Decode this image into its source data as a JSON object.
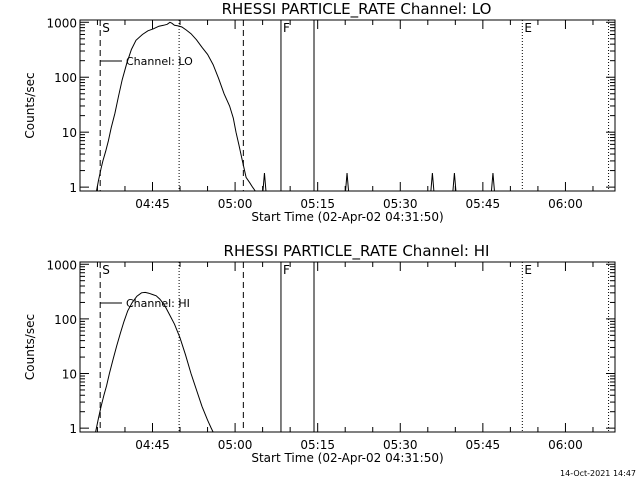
{
  "colors": {
    "background": "#ffffff",
    "foreground": "#000000"
  },
  "footer": {
    "timestamp": "14-Oct-2021 14:47"
  },
  "chart_data": [
    {
      "type": "line",
      "title": "RHESSI PARTICLE_RATE Channel: LO",
      "xlabel": "Start Time (02-Apr-02 04:31:50)",
      "ylabel": "Counts/sec",
      "yscale": "log",
      "xlim": [
        "04:31:50",
        "06:09:00"
      ],
      "ylim": [
        0.85,
        1100
      ],
      "x_ticks": [
        "04:45",
        "05:00",
        "05:15",
        "05:30",
        "05:45",
        "06:00"
      ],
      "y_ticks": [
        "1",
        "10",
        "100",
        "1000"
      ],
      "legend": {
        "label": "Channel: LO",
        "placement": "top-left"
      },
      "series": [
        {
          "name": "Channel: LO",
          "points": [
            [
              "04:34:50",
              0.85
            ],
            [
              "04:35:10",
              1.3
            ],
            [
              "04:35:40",
              2.2
            ],
            [
              "04:36:00",
              3.0
            ],
            [
              "04:36:30",
              4.5
            ],
            [
              "04:37:00",
              7
            ],
            [
              "04:37:30",
              12
            ],
            [
              "04:38:10",
              22
            ],
            [
              "04:38:50",
              45
            ],
            [
              "04:39:30",
              90
            ],
            [
              "04:40:20",
              180
            ],
            [
              "04:41:10",
              320
            ],
            [
              "04:42:00",
              470
            ],
            [
              "04:43:10",
              600
            ],
            [
              "04:44:10",
              700
            ],
            [
              "04:45:10",
              760
            ],
            [
              "04:46:10",
              850
            ],
            [
              "04:47:00",
              880
            ],
            [
              "04:47:40",
              920
            ],
            [
              "04:48:10",
              1000
            ],
            [
              "04:48:30",
              960
            ],
            [
              "04:49:00",
              880
            ],
            [
              "04:49:40",
              860
            ],
            [
              "04:50:20",
              820
            ],
            [
              "04:51:10",
              720
            ],
            [
              "04:52:00",
              620
            ],
            [
              "04:53:00",
              480
            ],
            [
              "04:54:00",
              350
            ],
            [
              "04:55:00",
              260
            ],
            [
              "04:56:00",
              170
            ],
            [
              "04:57:00",
              95
            ],
            [
              "04:58:00",
              50
            ],
            [
              "04:59:00",
              30
            ],
            [
              "04:59:40",
              18
            ],
            [
              "05:00:10",
              10
            ],
            [
              "05:00:40",
              6
            ],
            [
              "05:01:20",
              3
            ],
            [
              "05:02:00",
              1.5
            ],
            [
              "05:02:40",
              1.2
            ],
            [
              "05:03:10",
              1.0
            ],
            [
              "05:03:40",
              0.85
            ]
          ],
          "spikes": [
            {
              "time": "05:05:20",
              "peak": 1.8
            },
            {
              "time": "05:20:20",
              "peak": 1.8
            },
            {
              "time": "05:35:50",
              "peak": 1.8
            },
            {
              "time": "05:39:50",
              "peak": 1.8
            },
            {
              "time": "05:46:50",
              "peak": 1.8
            }
          ]
        }
      ],
      "markers": [
        {
          "kind": "dashed",
          "time": "04:35:30",
          "label": "S"
        },
        {
          "kind": "dotted",
          "time": "04:49:50",
          "label": ""
        },
        {
          "kind": "dashed",
          "time": "05:01:30",
          "label": ""
        },
        {
          "kind": "solid",
          "time": "05:08:20",
          "label": "F"
        },
        {
          "kind": "solid",
          "time": "05:14:20",
          "label": ""
        },
        {
          "kind": "dotted",
          "time": "05:52:10",
          "label": "E"
        },
        {
          "kind": "dotted",
          "time": "06:07:50",
          "label": ""
        }
      ]
    },
    {
      "type": "line",
      "title": "RHESSI PARTICLE_RATE Channel: HI",
      "xlabel": "Start Time (02-Apr-02 04:31:50)",
      "ylabel": "Counts/sec",
      "yscale": "log",
      "xlim": [
        "04:31:50",
        "06:09:00"
      ],
      "ylim": [
        0.85,
        1100
      ],
      "x_ticks": [
        "04:45",
        "05:00",
        "05:15",
        "05:30",
        "05:45",
        "06:00"
      ],
      "y_ticks": [
        "1",
        "10",
        "100",
        "1000"
      ],
      "legend": {
        "label": "Channel: HI",
        "placement": "top-left"
      },
      "series": [
        {
          "name": "Channel: HI",
          "points": [
            [
              "04:34:40",
              0.85
            ],
            [
              "04:35:10",
              1.5
            ],
            [
              "04:35:40",
              2.5
            ],
            [
              "04:36:10",
              4
            ],
            [
              "04:36:40",
              6
            ],
            [
              "04:37:10",
              10
            ],
            [
              "04:37:50",
              18
            ],
            [
              "04:38:30",
              32
            ],
            [
              "04:39:10",
              55
            ],
            [
              "04:39:50",
              90
            ],
            [
              "04:40:30",
              140
            ],
            [
              "04:41:20",
              200
            ],
            [
              "04:42:10",
              260
            ],
            [
              "04:43:00",
              300
            ],
            [
              "04:43:40",
              305
            ],
            [
              "04:44:20",
              295
            ],
            [
              "04:45:00",
              280
            ],
            [
              "04:45:40",
              265
            ],
            [
              "04:46:20",
              230
            ],
            [
              "04:47:10",
              180
            ],
            [
              "04:48:00",
              125
            ],
            [
              "04:49:00",
              80
            ],
            [
              "04:50:00",
              45
            ],
            [
              "04:51:00",
              22
            ],
            [
              "04:52:00",
              10
            ],
            [
              "04:53:00",
              5
            ],
            [
              "04:54:00",
              2.5
            ],
            [
              "04:55:00",
              1.4
            ],
            [
              "04:55:40",
              1.0
            ],
            [
              "04:56:00",
              0.85
            ]
          ],
          "spikes": []
        }
      ],
      "markers": [
        {
          "kind": "dashed",
          "time": "04:35:30",
          "label": "S"
        },
        {
          "kind": "dotted",
          "time": "04:49:50",
          "label": ""
        },
        {
          "kind": "dashed",
          "time": "05:01:30",
          "label": ""
        },
        {
          "kind": "solid",
          "time": "05:08:20",
          "label": "F"
        },
        {
          "kind": "solid",
          "time": "05:14:20",
          "label": ""
        },
        {
          "kind": "dotted",
          "time": "05:52:10",
          "label": "E"
        },
        {
          "kind": "dotted",
          "time": "06:07:50",
          "label": ""
        }
      ]
    }
  ]
}
